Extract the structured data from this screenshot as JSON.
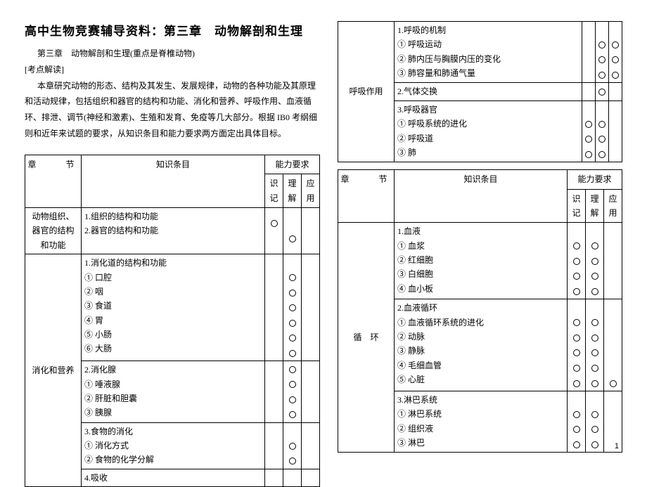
{
  "title": "高中生物竞赛辅导资料：第三章　动物解剖和生理",
  "subtitle": "第三章　动物解剖和生理(重点是脊椎动物)",
  "section_label": "[考点解读]",
  "intro_p1": "本章研究动物的形态、结构及其发生、发展规律，动物的各种功能及其原理和活动规律，包括组织和器官的结构和功能、消化和营养、呼吸作用、血液循环、排泄、调节(神经和激素)、生殖和发育、免疫等几大部分。根据 IB0 考纲细则和近年来试题的要求，从知识条目和能力要求两方面定出具体目标。",
  "headers": {
    "chapter": "章　　节",
    "item": "知识条目",
    "ability": "能力要求",
    "c1": "识记",
    "c2": "理解",
    "c3": "应用"
  },
  "left_table": [
    {
      "chapter": "动物组织、器官的结构和功能",
      "groups": [
        {
          "lines": [
            "1.组织的结构和功能",
            "2.器官的结构和功能"
          ],
          "marks": [
            [
              1,
              0,
              0
            ],
            [
              0,
              1,
              0
            ]
          ]
        }
      ]
    },
    {
      "chapter": "消化和营养",
      "groups": [
        {
          "lines": [
            "1.消化道的结构和功能",
            "① 口腔",
            "② 咽",
            "③ 食道",
            "④ 胃",
            "⑤ 小肠",
            "⑥ 大肠"
          ],
          "marks": [
            [
              0,
              0,
              0
            ],
            [
              0,
              1,
              0
            ],
            [
              0,
              1,
              0
            ],
            [
              0,
              1,
              0
            ],
            [
              0,
              1,
              0
            ],
            [
              0,
              1,
              0
            ],
            [
              0,
              1,
              0
            ]
          ]
        },
        {
          "lines": [
            "2.消化腺",
            "① 唾液腺",
            "② 肝脏和胆囊",
            "③ 胰腺"
          ],
          "marks": [
            [
              0,
              1,
              0
            ],
            [
              0,
              1,
              0
            ],
            [
              0,
              1,
              0
            ],
            [
              0,
              1,
              0
            ]
          ]
        },
        {
          "lines": [
            "3.食物的消化",
            "① 消化方式",
            "② 食物的化学分解"
          ],
          "marks": [
            [
              0,
              0,
              0
            ],
            [
              0,
              1,
              0
            ],
            [
              0,
              1,
              0
            ]
          ]
        },
        {
          "lines": [
            "4.吸收"
          ],
          "marks": [
            [
              0,
              0,
              0
            ]
          ]
        }
      ]
    }
  ],
  "right_table_1": [
    {
      "chapter": "呼吸作用",
      "groups": [
        {
          "lines": [
            "1.呼吸的机制",
            "① 呼吸运动",
            "② 肺内压与胸膜内压的变化",
            "③ 肺容量和肺通气量"
          ],
          "marks": [
            [
              0,
              0,
              0
            ],
            [
              0,
              1,
              1
            ],
            [
              0,
              1,
              1
            ],
            [
              0,
              1,
              1
            ]
          ]
        },
        {
          "lines": [
            "2.气体交换"
          ],
          "marks": [
            [
              0,
              1,
              0
            ]
          ]
        },
        {
          "lines": [
            "3.呼吸器官",
            "① 呼吸系统的进化",
            "② 呼吸道",
            "③ 肺"
          ],
          "marks": [
            [
              0,
              0,
              0
            ],
            [
              1,
              1,
              0
            ],
            [
              1,
              1,
              0
            ],
            [
              1,
              1,
              0
            ]
          ]
        }
      ]
    }
  ],
  "right_table_2": [
    {
      "chapter": "循　环",
      "groups": [
        {
          "lines": [
            "1.血液",
            "① 血浆",
            "② 红细胞",
            "③ 白细胞",
            "④ 血小板"
          ],
          "marks": [
            [
              0,
              0,
              0
            ],
            [
              1,
              1,
              0
            ],
            [
              1,
              1,
              0
            ],
            [
              1,
              1,
              0
            ],
            [
              1,
              1,
              0
            ]
          ]
        },
        {
          "lines": [
            "2.血液循环",
            "① 血液循环系统的进化",
            "② 动脉",
            "③ 静脉",
            "④ 毛细血管",
            "⑤ 心脏"
          ],
          "marks": [
            [
              0,
              0,
              0
            ],
            [
              1,
              1,
              0
            ],
            [
              1,
              1,
              0
            ],
            [
              1,
              1,
              0
            ],
            [
              1,
              1,
              0
            ],
            [
              1,
              1,
              1
            ]
          ]
        },
        {
          "lines": [
            "3.淋巴系统",
            "① 淋巴系统",
            "② 组织液",
            "③ 淋巴"
          ],
          "marks": [
            [
              0,
              0,
              0
            ],
            [
              1,
              1,
              0
            ],
            [
              1,
              1,
              0
            ],
            [
              1,
              1,
              0
            ]
          ]
        }
      ]
    }
  ],
  "page_number": "1"
}
